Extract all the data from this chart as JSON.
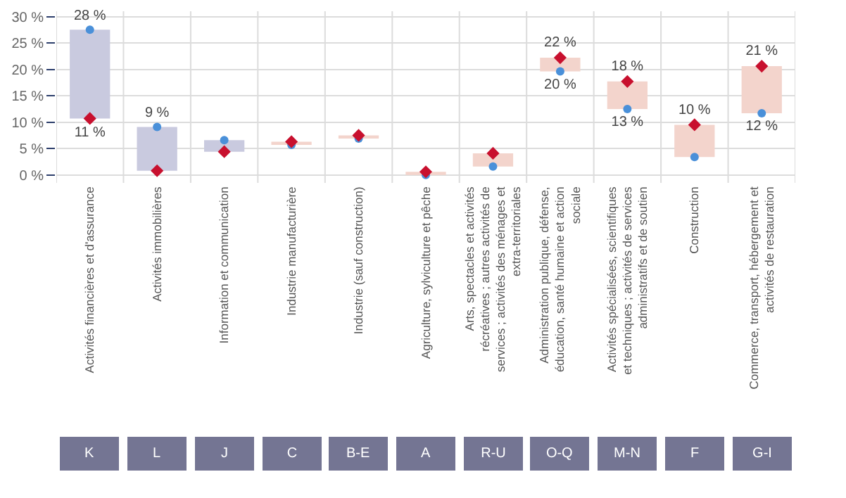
{
  "chart_data": {
    "type": "bar",
    "categories": [
      "Activités financières et d'assurance",
      "Activités immobilières",
      "Information et communication",
      "Industrie manufacturière",
      "Industrie (sauf construction)",
      "Agriculture, sylviculture et pêche",
      "Arts, spectacles et activités récréatives ; autres activités de services ; activités des ménages et extra-territoriales",
      "Administration publique, défense, éducation, santé humaine et action sociale",
      "Activités spécialisées, scientifiques et techniques ; activités de services administratifs et de soutien",
      "Construction",
      "Commerce, transport, hébergement et activités de restauration"
    ],
    "series": [
      {
        "base": [
          10.7,
          0.8,
          4.4,
          5.7,
          6.9,
          0,
          1.6,
          19.6,
          12.5,
          3.4,
          11.7
        ],
        "values": [
          16.8,
          8.3,
          2.2,
          0.6,
          0.6,
          0.6,
          2.5,
          2.6,
          5.2,
          6.1,
          8.9
        ],
        "colors": [
          "#c9cadf",
          "#c9cadf",
          "#c9cadf",
          "#f3d4cc",
          "#f3d4cc",
          "#f3d4cc",
          "#f3d4cc",
          "#f3d4cc",
          "#f3d4cc",
          "#f3d4cc",
          "#f3d4cc"
        ]
      },
      {
        "type": "scatter",
        "color": "#4a90d9",
        "marker": "circle",
        "values": [
          27.5,
          9.1,
          6.6,
          5.7,
          6.9,
          0,
          1.6,
          19.6,
          12.5,
          3.4,
          11.7
        ],
        "value_labels": [
          "28 %",
          "9 %",
          null,
          null,
          null,
          null,
          null,
          "20 %",
          "13 %",
          null,
          "12 %"
        ]
      },
      {
        "type": "scatter",
        "color": "#c8102e",
        "marker": "diamond",
        "values": [
          10.7,
          0.8,
          4.4,
          6.3,
          7.5,
          0.6,
          4.1,
          22.2,
          17.7,
          9.5,
          20.6
        ],
        "value_labels": [
          "11 %",
          null,
          null,
          null,
          null,
          null,
          null,
          "22 %",
          "18 %",
          "10 %",
          "21 %"
        ]
      }
    ],
    "ylim": [
      -1.5,
      31
    ],
    "yticks": [
      {
        "value": 0,
        "label": "0 %"
      },
      {
        "value": 5,
        "label": "5 %"
      },
      {
        "value": 10,
        "label": "10 %"
      },
      {
        "value": 15,
        "label": "15 %"
      },
      {
        "value": 20,
        "label": "20 %"
      },
      {
        "value": 25,
        "label": "25 %"
      },
      {
        "value": 30,
        "label": "30 %"
      }
    ],
    "grid": true,
    "annotations": [
      "K",
      "L",
      "J",
      "C",
      "B-E",
      "A",
      "R-U",
      "O-Q",
      "M-N",
      "F",
      "G-I"
    ]
  }
}
